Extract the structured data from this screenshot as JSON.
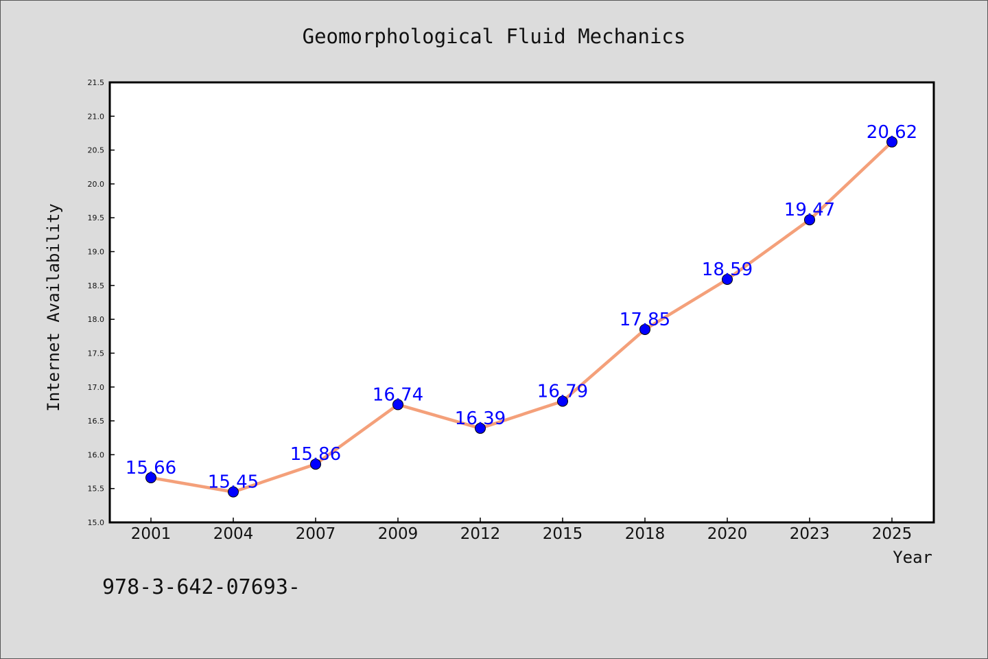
{
  "chart_data": {
    "type": "line",
    "title": "Geomorphological Fluid Mechanics",
    "xlabel": "Year",
    "ylabel": "Internet Availability",
    "categories": [
      "2001",
      "2004",
      "2007",
      "2009",
      "2012",
      "2015",
      "2018",
      "2020",
      "2023",
      "2025"
    ],
    "series": [
      {
        "values": [
          15.66,
          15.45,
          15.86,
          16.74,
          16.39,
          16.79,
          17.85,
          18.59,
          19.47,
          20.62
        ],
        "line_color": "#f4a07a",
        "marker_color": "#0000ff"
      }
    ],
    "data_labels": [
      "15.66",
      "15.45",
      "15.86",
      "16.74",
      "16.39",
      "16.79",
      "17.85",
      "18.59",
      "19.47",
      "20.62"
    ],
    "ylim": [
      15.0,
      21.5
    ],
    "yticks": [
      "15.0",
      "15.5",
      "16.0",
      "16.5",
      "17.0",
      "17.5",
      "18.0",
      "18.5",
      "19.0",
      "19.5",
      "20.0",
      "20.5",
      "21.0",
      "21.5"
    ],
    "grid": false,
    "legend": "none"
  },
  "footer": {
    "text": "978-3-642-07693-"
  },
  "colors": {
    "background": "#dcdcdc",
    "plot_background": "#ffffff",
    "line": "#f4a07a",
    "marker": "#0000ff",
    "data_label": "#0000ff"
  }
}
